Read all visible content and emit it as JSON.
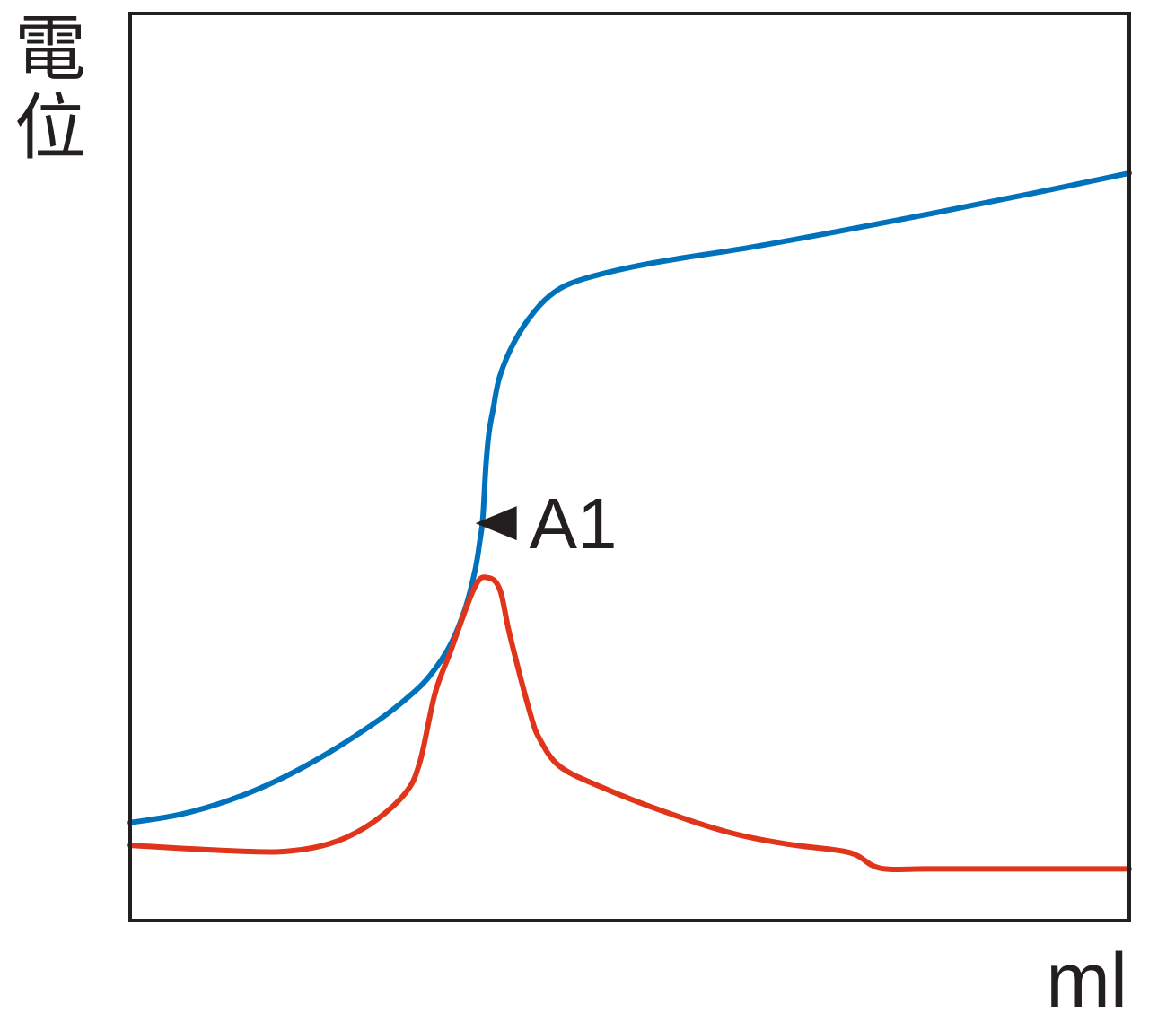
{
  "chart_data": {
    "type": "line",
    "title": "",
    "ylabel_chars": [
      "電",
      "位"
    ],
    "xlabel": "ml",
    "xlim": [
      0,
      100
    ],
    "ylim": [
      0,
      100
    ],
    "grid": false,
    "axis_color": "#231f20",
    "series": [
      {
        "color": "#0072bc",
        "points": [
          [
            0,
            10.8
          ],
          [
            5,
            11.7
          ],
          [
            10,
            13.3
          ],
          [
            15,
            15.6
          ],
          [
            20,
            18.6
          ],
          [
            25,
            22.2
          ],
          [
            28,
            24.8
          ],
          [
            30,
            27.0
          ],
          [
            32,
            30.3
          ],
          [
            33.5,
            34.3
          ],
          [
            34.5,
            38.5
          ],
          [
            35.0,
            41.8
          ],
          [
            35.3,
            44.4
          ],
          [
            35.6,
            50.0
          ],
          [
            35.9,
            53.7
          ],
          [
            36.3,
            56.2
          ],
          [
            37.0,
            60.0
          ],
          [
            38.5,
            63.9
          ],
          [
            40.5,
            67.2
          ],
          [
            42.5,
            69.3
          ],
          [
            45,
            70.6
          ],
          [
            50,
            72.0
          ],
          [
            55,
            73.0
          ],
          [
            62,
            74.2
          ],
          [
            70,
            75.8
          ],
          [
            80,
            77.9
          ],
          [
            90,
            80.1
          ],
          [
            100,
            82.4
          ]
        ]
      },
      {
        "color": "#e0341b",
        "points": [
          [
            0,
            8.3
          ],
          [
            8,
            7.8
          ],
          [
            15,
            7.6
          ],
          [
            20,
            8.5
          ],
          [
            24,
            10.6
          ],
          [
            27.5,
            14.0
          ],
          [
            29.0,
            17.5
          ],
          [
            30.5,
            25.0
          ],
          [
            32,
            29.5
          ],
          [
            34.5,
            36.8
          ],
          [
            35.8,
            37.8
          ],
          [
            37.0,
            36.5
          ],
          [
            38,
            31.5
          ],
          [
            40,
            23.0
          ],
          [
            41,
            20.0
          ],
          [
            43,
            17.0
          ],
          [
            47,
            14.8
          ],
          [
            53,
            12.2
          ],
          [
            60,
            9.7
          ],
          [
            66,
            8.4
          ],
          [
            72,
            7.5
          ],
          [
            75,
            5.8
          ],
          [
            80,
            5.7
          ],
          [
            90,
            5.7
          ],
          [
            100,
            5.7
          ]
        ]
      }
    ],
    "annotations": [
      {
        "text": "A1",
        "x": 34.2,
        "y": 43.8,
        "marker": "triangle-left"
      }
    ]
  }
}
